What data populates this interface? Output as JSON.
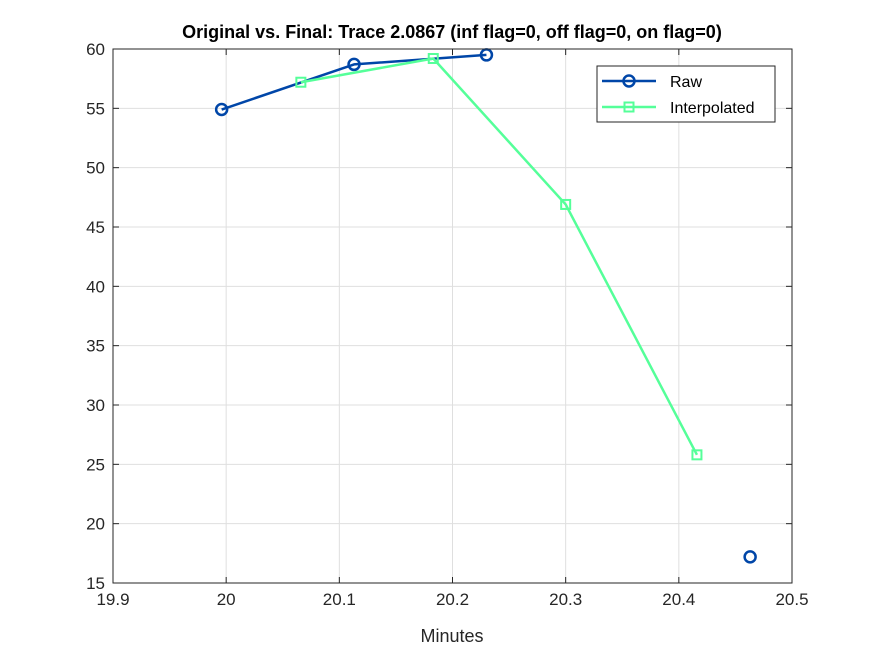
{
  "chart_data": {
    "type": "line",
    "title": "Original vs. Final: Trace 2.0867 (inf flag=0, off flag=0, on flag=0)",
    "xlabel": "Minutes",
    "ylabel": "",
    "xlim": [
      19.9,
      20.5
    ],
    "ylim": [
      15,
      60
    ],
    "xticks": [
      19.9,
      20,
      20.1,
      20.2,
      20.3,
      20.4,
      20.5
    ],
    "xtick_labels": [
      "19.9",
      "20",
      "20.1",
      "20.2",
      "20.3",
      "20.4",
      "20.5"
    ],
    "yticks": [
      15,
      20,
      25,
      30,
      35,
      40,
      45,
      50,
      55,
      60
    ],
    "ytick_labels": [
      "15",
      "20",
      "25",
      "30",
      "35",
      "40",
      "45",
      "50",
      "55",
      "60"
    ],
    "grid": true,
    "legend_position": "top-right",
    "series": [
      {
        "name": "Raw",
        "color": "#0046a8",
        "marker": "circle",
        "segments": [
          [
            {
              "x": 19.996,
              "y": 54.9
            },
            {
              "x": 20.113,
              "y": 58.7
            },
            {
              "x": 20.23,
              "y": 59.5
            }
          ],
          [
            {
              "x": 20.463,
              "y": 17.2
            }
          ]
        ]
      },
      {
        "name": "Interpolated",
        "color": "#55ff99",
        "marker": "square",
        "segments": [
          [
            {
              "x": 20.066,
              "y": 57.2
            },
            {
              "x": 20.183,
              "y": 59.2
            },
            {
              "x": 20.3,
              "y": 46.9
            },
            {
              "x": 20.416,
              "y": 25.8
            }
          ]
        ]
      }
    ]
  }
}
